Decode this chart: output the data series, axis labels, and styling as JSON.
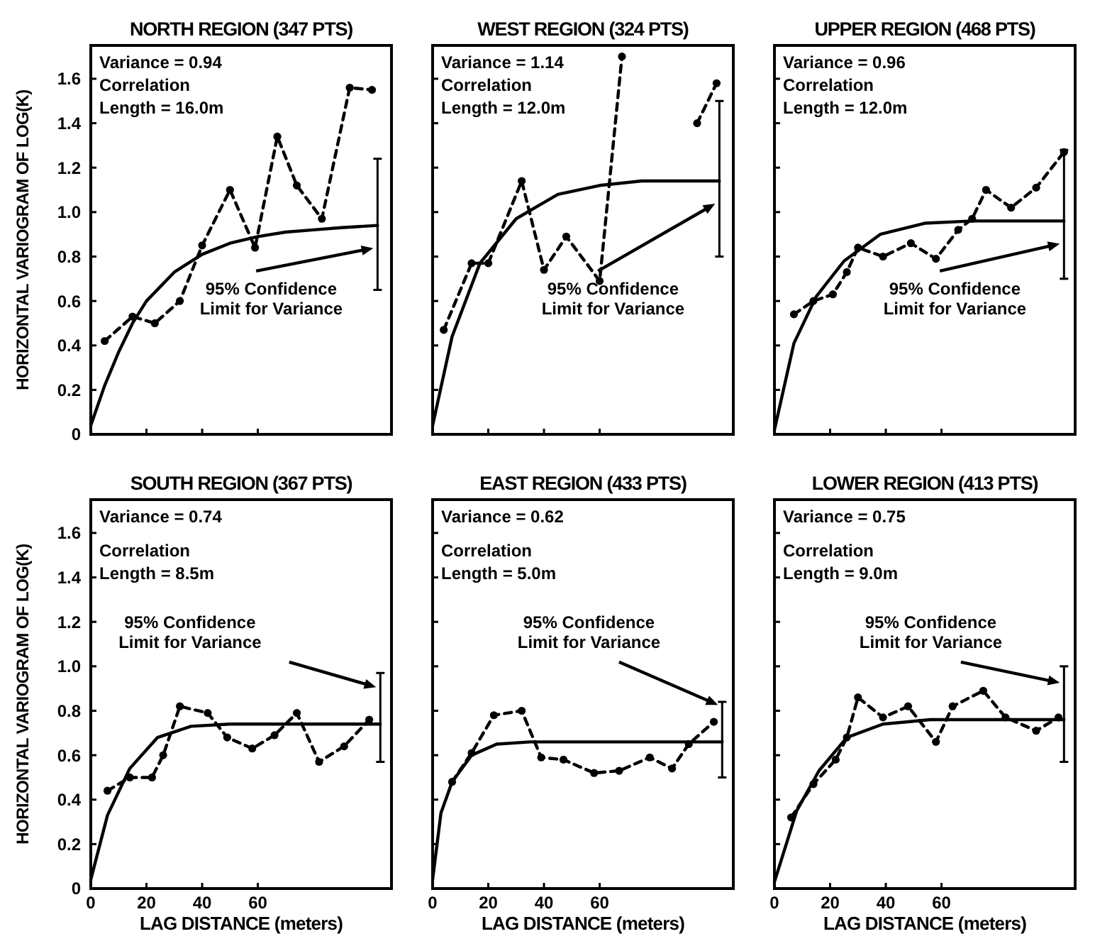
{
  "chart_data": [
    {
      "type": "line",
      "title": "NORTH REGION (347 PTS)",
      "ylabel": "HORIZONTAL VARIOGRAM OF LOG(K)",
      "xlim": [
        0,
        108
      ],
      "ylim": [
        0,
        1.75
      ],
      "xticks": [
        0,
        20,
        40,
        60
      ],
      "yticks": [
        0,
        0.2,
        0.4,
        0.6,
        0.8,
        {
          "value": 1,
          "label": "1.0"
        },
        1.2,
        1.4,
        1.6
      ],
      "tick_labels": "y",
      "annotations": [
        "Variance = 0.94",
        "Correlation",
        "Length = 16.0m",
        "95% Confidence\nLimit for Variance"
      ],
      "series": [
        {
          "type": "line",
          "color": "#000000",
          "line_style": "dashed",
          "marker": "circle",
          "x": [
            5,
            15,
            23,
            32,
            40,
            50,
            59,
            67,
            74,
            83,
            93,
            101
          ],
          "values": [
            0.42,
            0.53,
            0.5,
            0.6,
            0.85,
            1.1,
            0.84,
            1.34,
            1.12,
            0.97,
            1.56,
            1.55
          ]
        },
        {
          "type": "line",
          "color": "#000000",
          "line_style": "solid",
          "marker": "none",
          "x": [
            0,
            5,
            10,
            15,
            20,
            30,
            40,
            50,
            60,
            70,
            80,
            90,
            103
          ],
          "values": [
            0.04,
            0.22,
            0.37,
            0.5,
            0.6,
            0.73,
            0.81,
            0.86,
            0.89,
            0.91,
            0.92,
            0.93,
            0.94
          ],
          "errors": [
            null,
            null,
            null,
            null,
            null,
            null,
            null,
            null,
            null,
            null,
            null,
            null,
            [
              0.65,
              1.24
            ]
          ]
        }
      ]
    },
    {
      "type": "line",
      "title": "WEST REGION (324 PTS)",
      "xlim": [
        0,
        108
      ],
      "ylim": [
        0,
        1.75
      ],
      "xticks": [
        0,
        20,
        40,
        60
      ],
      "yticks": [
        0,
        0.2,
        0.4,
        0.6,
        0.8,
        1,
        1.2,
        1.4,
        1.6
      ],
      "tick_labels": false,
      "annotations": [
        "Variance = 1.14",
        "Correlation",
        "Length = 12.0m",
        "95% Confidence\nLimit for Variance"
      ],
      "series": [
        {
          "type": "line",
          "color": "#000000",
          "line_style": "dashed",
          "marker": "circle",
          "x": [
            4,
            14,
            20,
            32,
            40,
            48,
            60,
            68,
            80,
            95,
            102
          ],
          "values": [
            0.47,
            0.77,
            0.77,
            1.14,
            0.74,
            0.89,
            0.69,
            1.7,
            null,
            1.4,
            1.58
          ]
        },
        {
          "type": "line",
          "color": "#000000",
          "line_style": "solid",
          "marker": "none",
          "x": [
            0,
            7,
            17,
            30,
            45,
            60,
            75,
            90,
            103
          ],
          "values": [
            0.04,
            0.44,
            0.77,
            0.97,
            1.08,
            1.12,
            1.14,
            1.14,
            1.14
          ],
          "errors": [
            null,
            null,
            null,
            null,
            null,
            null,
            null,
            null,
            [
              0.8,
              1.5
            ]
          ]
        }
      ]
    },
    {
      "type": "line",
      "title": "UPPER REGION (468 PTS)",
      "xlim": [
        0,
        108
      ],
      "ylim": [
        0,
        1.75
      ],
      "xticks": [
        0,
        20,
        40,
        60
      ],
      "yticks": [
        0,
        0.2,
        0.4,
        0.6,
        0.8,
        1,
        1.2,
        1.4,
        1.6
      ],
      "tick_labels": false,
      "annotations": [
        "Variance = 0.96",
        "Correlation",
        "Length = 12.0m",
        "95% Confidence\nLimit for Variance"
      ],
      "series": [
        {
          "type": "line",
          "color": "#000000",
          "line_style": "dashed",
          "marker": "circle",
          "x": [
            7,
            14,
            21,
            26,
            30,
            39,
            49,
            58,
            66,
            71,
            76,
            85,
            94,
            104
          ],
          "values": [
            0.54,
            0.6,
            0.63,
            0.73,
            0.84,
            0.8,
            0.86,
            0.79,
            0.92,
            0.97,
            1.1,
            1.02,
            1.11,
            1.27
          ]
        },
        {
          "type": "line",
          "color": "#000000",
          "line_style": "solid",
          "marker": "none",
          "x": [
            0,
            7,
            15,
            25,
            38,
            54,
            71,
            88,
            104
          ],
          "values": [
            0.02,
            0.41,
            0.62,
            0.78,
            0.9,
            0.95,
            0.96,
            0.96,
            0.96
          ],
          "errors": [
            null,
            null,
            null,
            null,
            null,
            null,
            null,
            null,
            [
              0.7,
              1.28
            ]
          ]
        }
      ]
    },
    {
      "type": "line",
      "title": "SOUTH REGION (367 PTS)",
      "xlabel": "LAG DISTANCE (meters)",
      "ylabel": "HORIZONTAL VARIOGRAM OF LOG(K)",
      "xlim": [
        0,
        108
      ],
      "ylim": [
        0,
        1.75
      ],
      "xticks": [
        0,
        20,
        40,
        60
      ],
      "yticks": [
        0,
        0.2,
        0.4,
        0.6,
        0.8,
        {
          "value": 1,
          "label": "1.0"
        },
        1.2,
        1.4,
        1.6
      ],
      "annotations": [
        "Variance = 0.74",
        "Correlation",
        "Length = 8.5m",
        "95% Confidence\nLimit for Variance"
      ],
      "series": [
        {
          "type": "line",
          "color": "#000000",
          "line_style": "dashed",
          "marker": "circle",
          "x": [
            6,
            14,
            22,
            26,
            32,
            42,
            49,
            58,
            66,
            74,
            82,
            91,
            100
          ],
          "values": [
            0.44,
            0.5,
            0.5,
            0.6,
            0.82,
            0.79,
            0.68,
            0.63,
            0.69,
            0.79,
            0.57,
            0.64,
            0.76
          ]
        },
        {
          "type": "line",
          "color": "#000000",
          "line_style": "solid",
          "marker": "none",
          "x": [
            0,
            6,
            14,
            24,
            36,
            50,
            70,
            90,
            104
          ],
          "values": [
            0.04,
            0.33,
            0.54,
            0.68,
            0.73,
            0.74,
            0.74,
            0.74,
            0.74
          ],
          "errors": [
            null,
            null,
            null,
            null,
            null,
            null,
            null,
            null,
            [
              0.57,
              0.97
            ]
          ]
        }
      ]
    },
    {
      "type": "line",
      "title": "EAST REGION (433 PTS)",
      "xlabel": "LAG DISTANCE (meters)",
      "xlim": [
        0,
        108
      ],
      "ylim": [
        0,
        1.75
      ],
      "xticks": [
        0,
        20,
        40,
        60
      ],
      "yticks": [
        0,
        0.2,
        0.4,
        0.6,
        0.8,
        1,
        1.2,
        1.4,
        1.6
      ],
      "tick_labels": "x",
      "annotations": [
        "Variance = 0.62",
        "Correlation",
        "Length = 5.0m",
        "95% Confidence\nLimit for Variance"
      ],
      "series": [
        {
          "type": "line",
          "color": "#000000",
          "line_style": "dashed",
          "marker": "circle",
          "x": [
            7,
            14,
            22,
            32,
            39,
            47,
            58,
            67,
            78,
            86,
            92,
            101
          ],
          "values": [
            0.48,
            0.61,
            0.78,
            0.8,
            0.59,
            0.58,
            0.52,
            0.53,
            0.59,
            0.54,
            0.65,
            0.75
          ]
        },
        {
          "type": "line",
          "color": "#000000",
          "line_style": "solid",
          "marker": "none",
          "x": [
            0,
            3,
            7,
            14,
            23,
            35,
            55,
            80,
            104
          ],
          "values": [
            0.04,
            0.34,
            0.48,
            0.6,
            0.65,
            0.66,
            0.66,
            0.66,
            0.66
          ],
          "errors": [
            null,
            null,
            null,
            null,
            null,
            null,
            null,
            null,
            [
              0.5,
              0.84
            ]
          ]
        }
      ]
    },
    {
      "type": "line",
      "title": "LOWER REGION (413 PTS)",
      "xlabel": "LAG DISTANCE (meters)",
      "xlim": [
        0,
        108
      ],
      "ylim": [
        0,
        1.75
      ],
      "xticks": [
        0,
        20,
        40,
        60
      ],
      "yticks": [
        0,
        0.2,
        0.4,
        0.6,
        0.8,
        1,
        1.2,
        1.4,
        1.6
      ],
      "tick_labels": "x",
      "annotations": [
        "Variance = 0.75",
        "Correlation",
        "Length = 9.0m",
        "95% Confidence\nLimit for Variance"
      ],
      "series": [
        {
          "type": "line",
          "color": "#000000",
          "line_style": "dashed",
          "marker": "circle",
          "x": [
            6,
            14,
            22,
            26,
            30,
            39,
            48,
            58,
            64,
            75,
            83,
            94,
            102
          ],
          "values": [
            0.32,
            0.47,
            0.58,
            0.68,
            0.86,
            0.77,
            0.82,
            0.66,
            0.82,
            0.89,
            0.77,
            0.71,
            0.77
          ]
        },
        {
          "type": "line",
          "color": "#000000",
          "line_style": "solid",
          "marker": "none",
          "x": [
            0,
            8,
            16,
            26,
            39,
            56,
            75,
            90,
            104
          ],
          "values": [
            0.03,
            0.35,
            0.53,
            0.68,
            0.74,
            0.76,
            0.76,
            0.76,
            0.76
          ],
          "errors": [
            null,
            null,
            null,
            null,
            null,
            null,
            null,
            null,
            [
              0.57,
              1.0
            ]
          ]
        }
      ]
    }
  ]
}
